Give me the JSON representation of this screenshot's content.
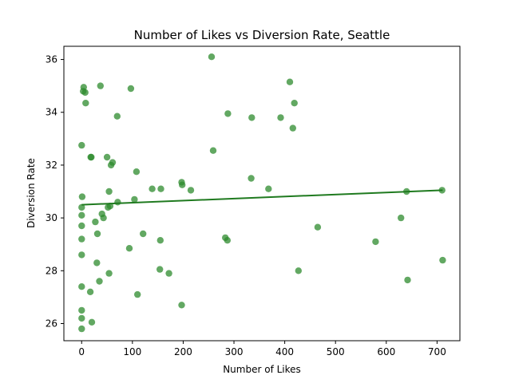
{
  "chart_data": {
    "type": "scatter",
    "title": "Number of Likes vs Diversion Rate, Seattle",
    "xlabel": "Number of Likes",
    "ylabel": "Diversion Rate",
    "xlim": [
      -35,
      745
    ],
    "ylim": [
      25.35,
      36.5
    ],
    "xticks": [
      0,
      100,
      200,
      300,
      400,
      500,
      600,
      700
    ],
    "yticks": [
      26,
      28,
      30,
      32,
      34,
      36
    ],
    "grid": false,
    "point_color": "#2e8b2e",
    "trend_color": "#1f7a1f",
    "points": [
      [
        0,
        25.8
      ],
      [
        0,
        26.2
      ],
      [
        0,
        26.5
      ],
      [
        0,
        27.4
      ],
      [
        0,
        28.6
      ],
      [
        0,
        29.2
      ],
      [
        0,
        29.7
      ],
      [
        0,
        30.1
      ],
      [
        0,
        30.4
      ],
      [
        1,
        30.8
      ],
      [
        0,
        32.75
      ],
      [
        3,
        34.8
      ],
      [
        4,
        34.95
      ],
      [
        7,
        34.75
      ],
      [
        8,
        34.35
      ],
      [
        17,
        27.2
      ],
      [
        18,
        32.3
      ],
      [
        19,
        32.3
      ],
      [
        20,
        26.05
      ],
      [
        27,
        29.85
      ],
      [
        30,
        28.3
      ],
      [
        31,
        29.4
      ],
      [
        35,
        27.6
      ],
      [
        37,
        35.0
      ],
      [
        40,
        30.15
      ],
      [
        43,
        30.0
      ],
      [
        50,
        32.3
      ],
      [
        52,
        30.4
      ],
      [
        54,
        31.0
      ],
      [
        54,
        27.9
      ],
      [
        56,
        30.45
      ],
      [
        58,
        32.0
      ],
      [
        61,
        32.1
      ],
      [
        70,
        33.85
      ],
      [
        71,
        30.6
      ],
      [
        94,
        28.85
      ],
      [
        97,
        34.9
      ],
      [
        104,
        30.7
      ],
      [
        108,
        31.75
      ],
      [
        110,
        27.1
      ],
      [
        121,
        29.4
      ],
      [
        139,
        31.1
      ],
      [
        154,
        28.05
      ],
      [
        155,
        29.15
      ],
      [
        156,
        31.1
      ],
      [
        172,
        27.9
      ],
      [
        197,
        31.35
      ],
      [
        197,
        26.7
      ],
      [
        198,
        31.25
      ],
      [
        215,
        31.05
      ],
      [
        256,
        36.1
      ],
      [
        259,
        32.55
      ],
      [
        283,
        29.25
      ],
      [
        287,
        29.15
      ],
      [
        288,
        33.95
      ],
      [
        334,
        31.5
      ],
      [
        335,
        33.8
      ],
      [
        368,
        31.1
      ],
      [
        392,
        33.8
      ],
      [
        410,
        35.15
      ],
      [
        416,
        33.4
      ],
      [
        419,
        34.35
      ],
      [
        427,
        28.0
      ],
      [
        465,
        29.65
      ],
      [
        579,
        29.1
      ],
      [
        629,
        30.0
      ],
      [
        640,
        31.0
      ],
      [
        642,
        27.65
      ],
      [
        710,
        31.05
      ],
      [
        711,
        28.4
      ]
    ],
    "trend_line": {
      "x": [
        0,
        711
      ],
      "y": [
        30.5,
        31.05
      ]
    }
  }
}
